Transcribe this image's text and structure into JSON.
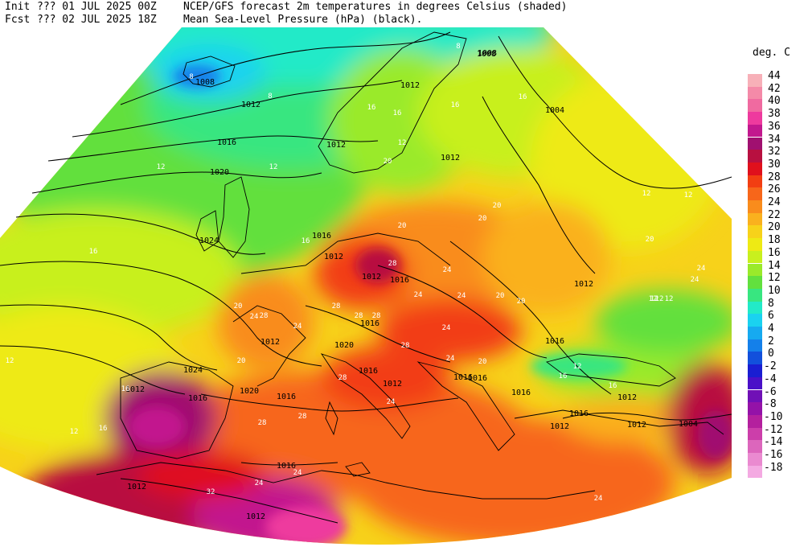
{
  "header": {
    "init_label": "Init",
    "init_value": "??? 01 JUL 2025 00Z",
    "fcst_label": "Fcst",
    "fcst_value": "??? 02 JUL 2025 18Z",
    "line1_text": "NCEP/GFS forecast 2m temperatures in degrees Celsius (shaded)",
    "line2_text": "Mean Sea-Level Pressure (hPa) (black)."
  },
  "colorbar": {
    "unit": "deg. C",
    "levels": [
      {
        "label": "44",
        "color": "#f7b0b8"
      },
      {
        "label": "42",
        "color": "#f48aa8"
      },
      {
        "label": "40",
        "color": "#f06aa0"
      },
      {
        "label": "38",
        "color": "#ee3a9e"
      },
      {
        "label": "36",
        "color": "#c2188e"
      },
      {
        "label": "34",
        "color": "#a01070"
      },
      {
        "label": "32",
        "color": "#b81040"
      },
      {
        "label": "30",
        "color": "#e0101c"
      },
      {
        "label": "28",
        "color": "#f23e12"
      },
      {
        "label": "26",
        "color": "#f7661a"
      },
      {
        "label": "24",
        "color": "#f98c1c"
      },
      {
        "label": "22",
        "color": "#fab11e"
      },
      {
        "label": "20",
        "color": "#f7d21a"
      },
      {
        "label": "18",
        "color": "#eeea14"
      },
      {
        "label": "16",
        "color": "#c8f01e"
      },
      {
        "label": "14",
        "color": "#9aea2a"
      },
      {
        "label": "12",
        "color": "#62e03e"
      },
      {
        "label": "10",
        "color": "#38e680"
      },
      {
        "label": "8",
        "color": "#22eac8"
      },
      {
        "label": "6",
        "color": "#1ad2f0"
      },
      {
        "label": "4",
        "color": "#16aaf0"
      },
      {
        "label": "2",
        "color": "#1480ea"
      },
      {
        "label": "0",
        "color": "#1250dc"
      },
      {
        "label": "-2",
        "color": "#1a1ed2"
      },
      {
        "label": "-4",
        "color": "#4a10c8"
      },
      {
        "label": "-6",
        "color": "#7010b6"
      },
      {
        "label": "-8",
        "color": "#9412a8"
      },
      {
        "label": "-10",
        "color": "#b4209e"
      },
      {
        "label": "-12",
        "color": "#cc3eaa"
      },
      {
        "label": "-14",
        "color": "#dc66bc"
      },
      {
        "label": "-16",
        "color": "#ea8ad0"
      },
      {
        "label": "-18",
        "color": "#f4aae2"
      }
    ]
  },
  "pressure_labels": [
    "1008",
    "1008",
    "1012",
    "1016",
    "1012",
    "1012",
    "1004",
    "1012",
    "1020",
    "1024",
    "1012",
    "1016",
    "1012",
    "1016",
    "1012",
    "1016",
    "1020",
    "1016",
    "1024",
    "1012",
    "1016",
    "1020",
    "1016",
    "1016",
    "1016",
    "1016",
    "1012",
    "1016",
    "1012",
    "1012",
    "1004",
    "1012",
    "1016",
    "1012",
    "1012",
    "1012",
    "1016",
    "1008"
  ],
  "temperature_labels": [
    "8",
    "8",
    "12",
    "8",
    "12",
    "16",
    "16",
    "16",
    "16",
    "12",
    "12",
    "12",
    "12",
    "12",
    "16",
    "20",
    "16",
    "20",
    "20",
    "24",
    "20",
    "24",
    "24",
    "20",
    "24",
    "24",
    "24",
    "20",
    "28",
    "28",
    "28",
    "28",
    "24",
    "24",
    "28",
    "28",
    "20",
    "28",
    "28",
    "28",
    "24",
    "24",
    "20",
    "12",
    "12",
    "24",
    "32",
    "24",
    "24",
    "12",
    "16",
    "16",
    "20",
    "20",
    "16",
    "16",
    "12",
    "12"
  ],
  "chart_data": {
    "type": "heatmap",
    "title": "NCEP/GFS forecast 2m temperatures in degrees Celsius (shaded)",
    "subtitle": "Mean Sea-Level Pressure (hPa) (black).",
    "colorbar_unit": "deg. C",
    "colorbar_range": [
      -18,
      44
    ],
    "colorbar_step": 2,
    "contour_field": "Mean Sea-Level Pressure (hPa)",
    "pressure_contour_values": [
      1004,
      1008,
      1012,
      1016,
      1020,
      1024
    ],
    "forecast_init": "??? 01 JUL 2025 00Z",
    "forecast_valid": "??? 02 JUL 2025 18Z"
  }
}
